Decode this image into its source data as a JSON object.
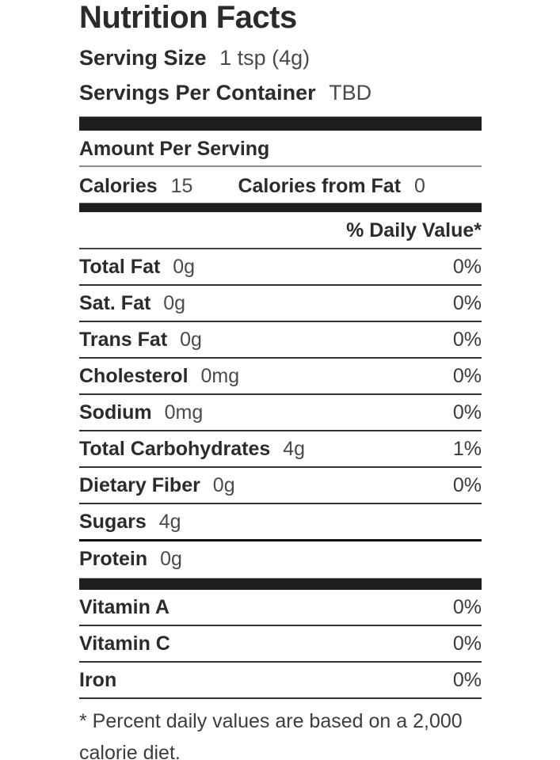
{
  "title": "Nutrition Facts",
  "serving_info": {
    "serving_size": {
      "label": "Serving Size",
      "value": "1 tsp (4g)"
    },
    "servings_per_container": {
      "label": "Servings Per Container",
      "value": "TBD"
    }
  },
  "amount_per_serving_header": "Amount Per Serving",
  "calories": {
    "label": "Calories",
    "value": "15"
  },
  "calories_from_fat": {
    "label": "Calories from Fat",
    "value": "0"
  },
  "daily_value_header": "% Daily Value*",
  "nutrients": [
    {
      "label": "Total Fat",
      "amount": "0g",
      "dv": "0%"
    },
    {
      "label": "Sat. Fat",
      "amount": "0g",
      "dv": "0%"
    },
    {
      "label": "Trans Fat",
      "amount": "0g",
      "dv": "0%"
    },
    {
      "label": "Cholesterol",
      "amount": "0mg",
      "dv": "0%"
    },
    {
      "label": "Sodium",
      "amount": "0mg",
      "dv": "0%"
    },
    {
      "label": "Total Carbohydrates",
      "amount": "4g",
      "dv": "1%"
    },
    {
      "label": "Dietary Fiber",
      "amount": "0g",
      "dv": "0%"
    },
    {
      "label": "Sugars",
      "amount": "4g",
      "dv": ""
    },
    {
      "label": "Protein",
      "amount": "0g",
      "dv": ""
    }
  ],
  "vitamins": [
    {
      "label": "Vitamin A",
      "dv": "0%"
    },
    {
      "label": "Vitamin C",
      "dv": "0%"
    },
    {
      "label": "Iron",
      "dv": "0%"
    }
  ],
  "footnote": "* Percent daily values are based on a 2,000 calorie diet.",
  "colors": {
    "section_bar": "#1e1e1e",
    "label_text": "#2b2b2b",
    "value_text": "#4a4a4a",
    "separator": "#333333",
    "light_separator": "#8a8a8a",
    "background": "#ffffff"
  }
}
